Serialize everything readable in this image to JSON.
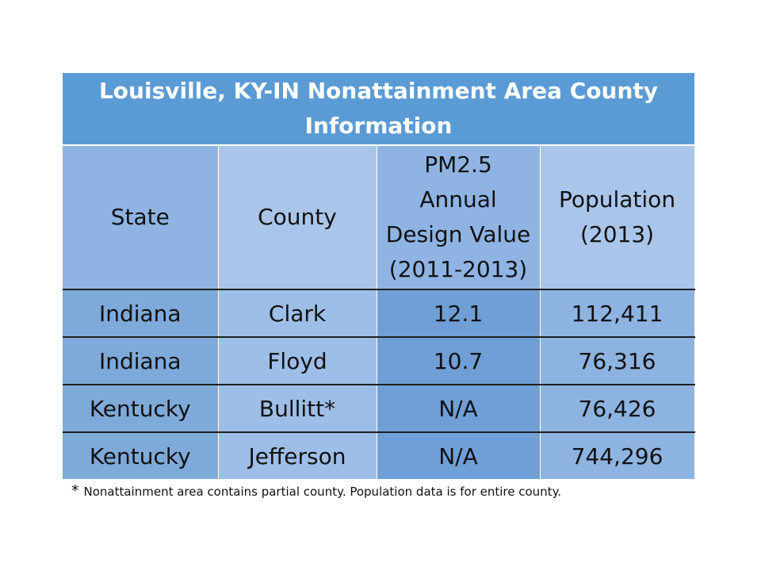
{
  "table": {
    "title": "Louisville, KY-IN Nonattainment Area  County Information",
    "headers": {
      "state": "State",
      "county": "County",
      "pm_lines": [
        "PM2.5",
        "Annual",
        "Design Value",
        "(2011-2013)"
      ],
      "pop_lines": [
        "Population",
        "(2013)"
      ]
    },
    "rows": [
      {
        "state": "Indiana",
        "county": "Clark",
        "pm": "12.1",
        "population": "112,411"
      },
      {
        "state": "Indiana",
        "county": "Floyd",
        "pm": "10.7",
        "population": "76,316"
      },
      {
        "state": "Kentucky",
        "county": "Bullitt*",
        "pm": "N/A",
        "population": "76,426"
      },
      {
        "state": "Kentucky",
        "county": "Jefferson",
        "pm": "N/A",
        "population": "744,296"
      }
    ]
  },
  "footnote": {
    "star": "*",
    "text": "Nonattainment area contains partial county.  Population data is for entire county."
  },
  "colors": {
    "title_bg": "#5b9bd5",
    "header_dark": "#8fb4e3",
    "header_light": "#a9c6ea"
  }
}
